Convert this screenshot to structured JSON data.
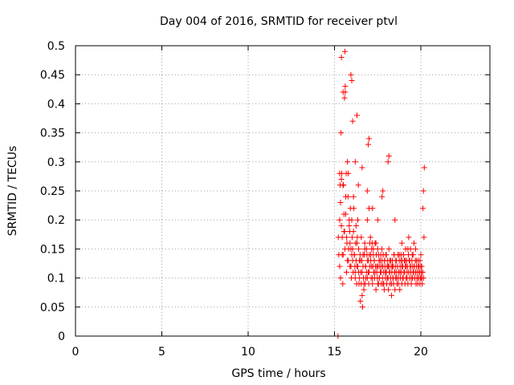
{
  "chart_data": {
    "type": "scatter",
    "title": "Day 004 of 2016, SRMTID for receiver ptvl",
    "xlabel": "GPS time / hours",
    "ylabel": "SRMTID / TECUs",
    "xlim": [
      0,
      24
    ],
    "ylim": [
      0,
      0.5
    ],
    "xticks": [
      0,
      5,
      10,
      15,
      20
    ],
    "yticks": [
      0,
      0.05,
      0.1,
      0.15,
      0.2,
      0.25,
      0.3,
      0.35,
      0.4,
      0.45,
      0.5
    ],
    "xtick_labels": [
      "0",
      "5",
      "10",
      "15",
      "20"
    ],
    "ytick_labels": [
      "0",
      "0.05",
      "0.1",
      "0.15",
      "0.2",
      "0.25",
      "0.3",
      "0.35",
      "0.4",
      "0.45",
      "0.5"
    ],
    "grid": true,
    "marker": "+",
    "color": "#ff0000",
    "series": [
      {
        "x": [
          15.2,
          15.22,
          15.25,
          15.3,
          15.32,
          15.35,
          15.38,
          15.4,
          15.42,
          15.45,
          15.48,
          15.5,
          15.52,
          15.55,
          15.58,
          15.6,
          15.62,
          15.65,
          15.68,
          15.7,
          15.72,
          15.75,
          15.78,
          15.8,
          15.82,
          15.85,
          15.88,
          15.9,
          15.92,
          15.95,
          15.98,
          16.0,
          16.02,
          16.05,
          16.08,
          16.1,
          16.12,
          16.15,
          16.18,
          16.2,
          16.22,
          16.25,
          16.28,
          16.3,
          16.32,
          16.35,
          16.38,
          16.4,
          16.42,
          16.45,
          16.48,
          16.5,
          16.52,
          16.55,
          16.58,
          16.6,
          16.62,
          16.65,
          16.68,
          16.7,
          16.72,
          16.75,
          16.78,
          16.8,
          16.82,
          16.85,
          16.88,
          16.9,
          16.92,
          16.95,
          16.98,
          17.0,
          17.02,
          17.05,
          17.08,
          17.1,
          17.12,
          17.15,
          17.18,
          17.2,
          17.22,
          17.25,
          17.28,
          17.3,
          17.32,
          17.35,
          17.38,
          17.4,
          17.42,
          17.45,
          17.48,
          17.5,
          17.52,
          17.55,
          17.58,
          17.6,
          17.62,
          17.65,
          17.68,
          17.7,
          17.72,
          17.75,
          17.78,
          17.8,
          17.82,
          17.85,
          17.88,
          17.9,
          17.92,
          17.95,
          17.98,
          18.0,
          18.02,
          18.05,
          18.08,
          18.1,
          18.12,
          18.15,
          18.18,
          18.2,
          18.22,
          18.25,
          18.28,
          18.3,
          18.32,
          18.35,
          18.38,
          18.4,
          18.42,
          18.45,
          18.48,
          18.5,
          18.52,
          18.55,
          18.58,
          18.6,
          18.62,
          18.65,
          18.68,
          18.7,
          18.72,
          18.75,
          18.78,
          18.8,
          18.82,
          18.85,
          18.88,
          18.9,
          18.92,
          18.95,
          18.98,
          19.0,
          19.02,
          19.05,
          19.08,
          19.1,
          19.12,
          19.15,
          19.18,
          19.2,
          19.22,
          19.25,
          19.28,
          19.3,
          19.32,
          19.35,
          19.38,
          19.4,
          19.42,
          19.45,
          19.48,
          19.5,
          19.52,
          19.55,
          19.58,
          19.6,
          19.62,
          19.65,
          19.68,
          19.7,
          19.72,
          19.75,
          19.78,
          19.8,
          19.82,
          19.85,
          19.88,
          19.9,
          19.92,
          19.95,
          19.98,
          20.0,
          20.02,
          20.05,
          20.08,
          20.1,
          20.12,
          20.15,
          20.18,
          20.2,
          15.3,
          15.35,
          15.4,
          15.45,
          15.5,
          15.55,
          15.6,
          15.65,
          15.7,
          15.75,
          15.8,
          15.85,
          15.9,
          15.95,
          16.0,
          16.05,
          16.1,
          16.15,
          16.2,
          16.25,
          16.3,
          16.35,
          16.4,
          16.45,
          16.5,
          16.55,
          16.6,
          16.65,
          16.7,
          16.75,
          16.8,
          16.85,
          16.9,
          16.95,
          17.0,
          17.05,
          17.1,
          17.15,
          17.2,
          17.25,
          17.3,
          17.35,
          17.4,
          17.45,
          17.5,
          17.55,
          17.6,
          17.65,
          17.7,
          17.75,
          17.8,
          17.85,
          17.9,
          17.95,
          18.0,
          18.05,
          18.1,
          18.15,
          18.2,
          18.25,
          18.3,
          18.35,
          18.4,
          18.45,
          18.5,
          18.55,
          18.6,
          18.65,
          18.7,
          18.75,
          18.8,
          18.85,
          18.9,
          18.95,
          19.0,
          19.05,
          19.1,
          19.15,
          19.2,
          19.25,
          19.3,
          19.35,
          19.4,
          19.45,
          19.5,
          19.55,
          19.6,
          19.65,
          19.7,
          19.75,
          19.8,
          19.85,
          19.9,
          19.95,
          20.0,
          20.05,
          20.1,
          20.15,
          15.5,
          15.95,
          16.0,
          15.58,
          15.62,
          16.3,
          16.05,
          17.0,
          16.95,
          18.1,
          18.15,
          17.8,
          17.75,
          18.5,
          15.3,
          15.4,
          15.5,
          16.2,
          16.6,
          16.9,
          17.2,
          17.5,
          18.9,
          19.3,
          19.7,
          20.0
        ],
        "y": [
          0.0,
          0.17,
          0.14,
          0.2,
          0.26,
          0.1,
          0.35,
          0.48,
          0.28,
          0.17,
          0.09,
          0.14,
          0.26,
          0.21,
          0.18,
          0.49,
          0.43,
          0.24,
          0.28,
          0.11,
          0.16,
          0.3,
          0.24,
          0.13,
          0.15,
          0.2,
          0.18,
          0.12,
          0.22,
          0.15,
          0.1,
          0.14,
          0.17,
          0.13,
          0.11,
          0.24,
          0.22,
          0.14,
          0.12,
          0.1,
          0.16,
          0.13,
          0.09,
          0.12,
          0.17,
          0.2,
          0.26,
          0.11,
          0.09,
          0.13,
          0.14,
          0.06,
          0.11,
          0.09,
          0.13,
          0.07,
          0.05,
          0.12,
          0.1,
          0.08,
          0.14,
          0.15,
          0.09,
          0.12,
          0.1,
          0.11,
          0.14,
          0.2,
          0.13,
          0.11,
          0.09,
          0.22,
          0.14,
          0.12,
          0.17,
          0.13,
          0.1,
          0.15,
          0.16,
          0.09,
          0.12,
          0.14,
          0.11,
          0.13,
          0.1,
          0.16,
          0.12,
          0.08,
          0.14,
          0.11,
          0.1,
          0.15,
          0.12,
          0.09,
          0.13,
          0.1,
          0.12,
          0.11,
          0.14,
          0.09,
          0.12,
          0.13,
          0.1,
          0.09,
          0.14,
          0.11,
          0.08,
          0.13,
          0.12,
          0.1,
          0.14,
          0.11,
          0.09,
          0.12,
          0.13,
          0.1,
          0.08,
          0.12,
          0.11,
          0.13,
          0.09,
          0.1,
          0.12,
          0.07,
          0.11,
          0.13,
          0.1,
          0.12,
          0.09,
          0.14,
          0.11,
          0.08,
          0.12,
          0.1,
          0.13,
          0.11,
          0.09,
          0.12,
          0.14,
          0.1,
          0.11,
          0.13,
          0.08,
          0.12,
          0.1,
          0.14,
          0.11,
          0.09,
          0.13,
          0.12,
          0.1,
          0.14,
          0.11,
          0.13,
          0.09,
          0.12,
          0.15,
          0.1,
          0.13,
          0.11,
          0.12,
          0.09,
          0.14,
          0.11,
          0.13,
          0.1,
          0.12,
          0.15,
          0.11,
          0.09,
          0.13,
          0.12,
          0.1,
          0.14,
          0.11,
          0.16,
          0.12,
          0.1,
          0.13,
          0.11,
          0.09,
          0.12,
          0.1,
          0.11,
          0.09,
          0.13,
          0.1,
          0.12,
          0.11,
          0.09,
          0.1,
          0.12,
          0.11,
          0.1,
          0.09,
          0.11,
          0.22,
          0.25,
          0.17,
          0.29,
          0.12,
          0.23,
          0.19,
          0.14,
          0.26,
          0.18,
          0.15,
          0.21,
          0.17,
          0.13,
          0.28,
          0.19,
          0.16,
          0.12,
          0.2,
          0.15,
          0.18,
          0.14,
          0.11,
          0.19,
          0.16,
          0.12,
          0.15,
          0.1,
          0.13,
          0.17,
          0.11,
          0.14,
          0.09,
          0.16,
          0.12,
          0.15,
          0.1,
          0.13,
          0.11,
          0.16,
          0.14,
          0.12,
          0.1,
          0.15,
          0.13,
          0.11,
          0.16,
          0.12,
          0.09,
          0.14,
          0.1,
          0.13,
          0.11,
          0.15,
          0.12,
          0.09,
          0.13,
          0.11,
          0.14,
          0.1,
          0.12,
          0.15,
          0.11,
          0.13,
          0.09,
          0.12,
          0.1,
          0.14,
          0.11,
          0.13,
          0.1,
          0.12,
          0.09,
          0.14,
          0.11,
          0.13,
          0.12,
          0.1,
          0.14,
          0.11,
          0.13,
          0.12,
          0.1,
          0.15,
          0.11,
          0.13,
          0.12,
          0.1,
          0.14,
          0.11,
          0.12,
          0.1,
          0.11,
          0.13,
          0.1,
          0.12,
          0.11,
          0.13,
          0.1,
          0.12,
          0.11,
          0.1,
          0.42,
          0.45,
          0.44,
          0.41,
          0.42,
          0.38,
          0.37,
          0.34,
          0.33,
          0.3,
          0.31,
          0.25,
          0.24,
          0.2,
          0.28,
          0.27,
          0.26,
          0.3,
          0.29,
          0.25,
          0.22,
          0.2,
          0.16,
          0.17,
          0.15,
          0.14
        ]
      }
    ]
  }
}
